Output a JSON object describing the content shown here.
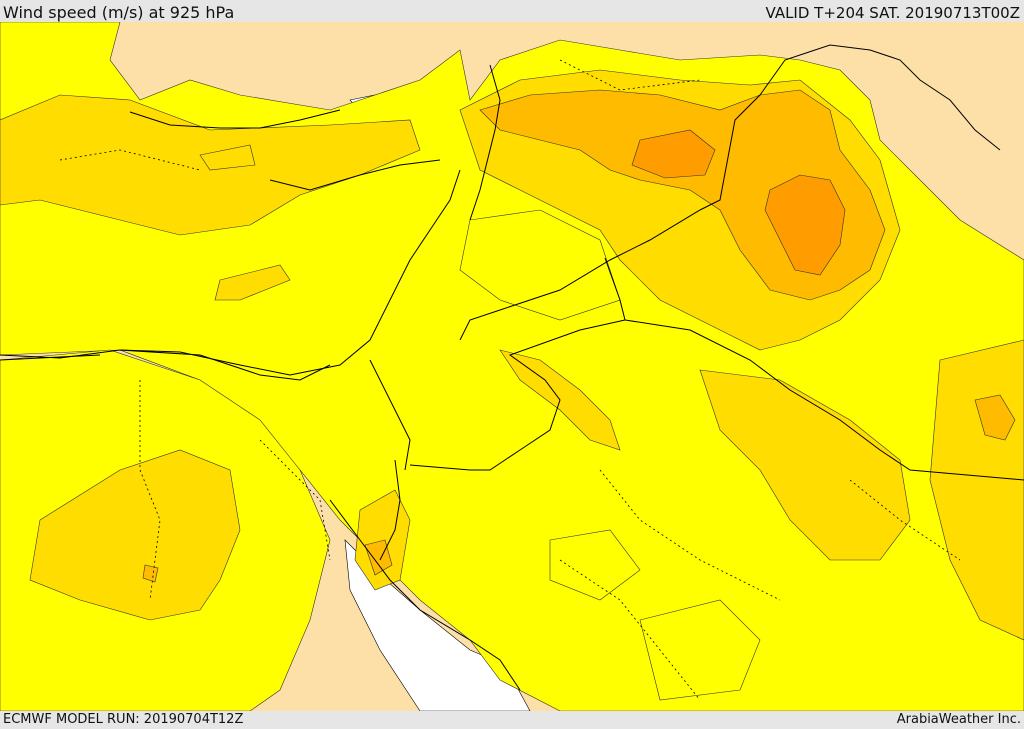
{
  "header": {
    "title": "Wind speed (m/s) at 925 hPa",
    "valid": "VALID T+204 SAT. 20190713T00Z"
  },
  "footer": {
    "model_run": "ECMWF MODEL RUN: 20190704T12Z",
    "credit": "ArabiaWeather Inc."
  },
  "colors": {
    "background_land": "#fde0a8",
    "calm_white": "#ffffff",
    "level_1": "#ffff00",
    "level_2": "#ffdd00",
    "level_3": "#ffbb00",
    "level_4": "#ff9d00",
    "border": "#000000"
  }
}
